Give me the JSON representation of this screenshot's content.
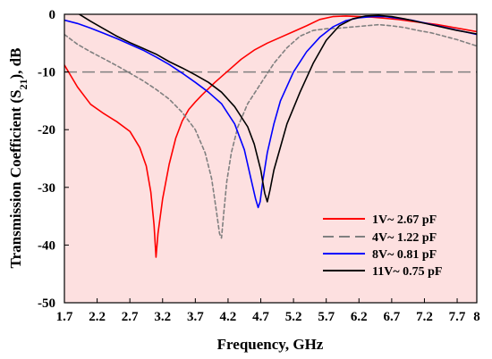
{
  "chart_data": {
    "type": "line",
    "xlabel": "Frequency, GHz",
    "ylabel_main": "Transmission Coefficient (S",
    "ylabel_sub": "21",
    "ylabel_tail": "), dB",
    "xlim": [
      1.7,
      8
    ],
    "ylim": [
      -50,
      0
    ],
    "xticks": [
      1.7,
      2.2,
      2.7,
      3.2,
      3.7,
      4.2,
      4.7,
      5.2,
      5.7,
      6.2,
      6.7,
      7.2,
      7.7,
      8
    ],
    "xtick_labels": [
      "1.7",
      "2.2",
      "2.7",
      "3.2",
      "3.7",
      "4.2",
      "4.7",
      "5.2",
      "5.7",
      "6.2",
      "6.7",
      "7.2",
      "7.7",
      "8"
    ],
    "yticks": [
      0,
      -10,
      -20,
      -30,
      -40,
      -50
    ],
    "ytick_labels": [
      "0",
      "-10",
      "-20",
      "-30",
      "-40",
      "-50"
    ],
    "plot_background": "#fde0e0",
    "grid": false,
    "reference_line": {
      "y": -10,
      "color": "#808080",
      "style": "dashed"
    },
    "legend_position": "bottom-right",
    "series": [
      {
        "name": "1V~ 2.67 pF",
        "color": "#ff0000",
        "style": "solid",
        "x": [
          1.7,
          1.9,
          2.1,
          2.3,
          2.5,
          2.7,
          2.85,
          2.95,
          3.02,
          3.07,
          3.1,
          3.13,
          3.2,
          3.3,
          3.4,
          3.5,
          3.6,
          3.7,
          3.8,
          4.0,
          4.2,
          4.4,
          4.6,
          4.8,
          5.0,
          5.2,
          5.4,
          5.6,
          5.8,
          6.0,
          6.2,
          6.4,
          6.6,
          6.8,
          7.0,
          7.2,
          7.4,
          7.6,
          7.8,
          8.0
        ],
        "y": [
          -8.8,
          -12.6,
          -15.6,
          -17.2,
          -18.6,
          -20.3,
          -23.1,
          -26.3,
          -30.8,
          -36.5,
          -42.1,
          -38.0,
          -32.0,
          -26.0,
          -21.5,
          -18.5,
          -16.5,
          -15.2,
          -14.0,
          -11.8,
          -9.8,
          -7.8,
          -6.2,
          -5.0,
          -4.0,
          -3.0,
          -2.0,
          -0.9,
          -0.4,
          -0.3,
          -0.4,
          -0.5,
          -0.7,
          -0.9,
          -1.2,
          -1.5,
          -1.8,
          -2.2,
          -2.6,
          -3.0
        ]
      },
      {
        "name": "4V~ 1.22 pF",
        "color": "#808080",
        "style": "dashed",
        "x": [
          1.7,
          1.9,
          2.1,
          2.3,
          2.5,
          2.7,
          2.9,
          3.1,
          3.3,
          3.5,
          3.7,
          3.85,
          3.95,
          4.02,
          4.07,
          4.1,
          4.13,
          4.18,
          4.25,
          4.35,
          4.5,
          4.7,
          4.9,
          5.1,
          5.3,
          5.5,
          5.7,
          5.9,
          6.1,
          6.3,
          6.5,
          6.7,
          6.9,
          7.1,
          7.3,
          7.5,
          7.7,
          8.0
        ],
        "y": [
          -3.5,
          -5.2,
          -6.5,
          -7.7,
          -8.9,
          -10.2,
          -11.5,
          -13.0,
          -14.7,
          -17.0,
          -20.0,
          -24.0,
          -28.5,
          -34.0,
          -38.0,
          -38.8,
          -35.0,
          -29.0,
          -24.0,
          -19.5,
          -15.5,
          -12.0,
          -8.5,
          -5.8,
          -3.8,
          -2.8,
          -2.5,
          -2.4,
          -2.2,
          -2.0,
          -1.8,
          -2.0,
          -2.3,
          -2.8,
          -3.2,
          -3.8,
          -4.4,
          -5.5
        ]
      },
      {
        "name": "8V~ 0.81 pF",
        "color": "#0000ff",
        "style": "solid",
        "x": [
          1.7,
          1.9,
          2.1,
          2.3,
          2.5,
          2.7,
          2.9,
          3.1,
          3.3,
          3.5,
          3.7,
          3.9,
          4.1,
          4.3,
          4.45,
          4.55,
          4.62,
          4.66,
          4.69,
          4.73,
          4.8,
          4.9,
          5.0,
          5.2,
          5.4,
          5.6,
          5.8,
          6.0,
          6.2,
          6.4,
          6.6,
          6.8,
          7.0,
          7.2,
          7.4,
          7.6,
          7.8,
          8.0
        ],
        "y": [
          -1.0,
          -1.6,
          -2.4,
          -3.3,
          -4.2,
          -5.2,
          -6.2,
          -7.4,
          -8.7,
          -10.2,
          -11.8,
          -13.5,
          -15.5,
          -19.0,
          -23.5,
          -28.5,
          -32.0,
          -33.5,
          -32.5,
          -29.0,
          -24.0,
          -19.0,
          -15.0,
          -10.0,
          -6.5,
          -4.0,
          -2.2,
          -1.1,
          -0.6,
          -0.4,
          -0.4,
          -0.7,
          -1.0,
          -1.5,
          -2.0,
          -2.5,
          -3.0,
          -3.5
        ]
      },
      {
        "name": "11V~ 0.75 pF",
        "color": "#000000",
        "style": "solid",
        "x": [
          1.7,
          1.9,
          2.1,
          2.3,
          2.5,
          2.7,
          2.9,
          3.1,
          3.3,
          3.5,
          3.7,
          3.9,
          4.1,
          4.3,
          4.5,
          4.6,
          4.7,
          4.76,
          4.8,
          4.84,
          4.9,
          5.0,
          5.1,
          5.3,
          5.5,
          5.7,
          5.9,
          6.1,
          6.3,
          6.5,
          6.7,
          6.9,
          7.1,
          7.3,
          7.5,
          7.7,
          8.0
        ],
        "y": [
          1.5,
          0.2,
          -1.2,
          -2.5,
          -3.8,
          -4.9,
          -5.9,
          -6.9,
          -8.2,
          -9.3,
          -10.5,
          -11.8,
          -13.5,
          -16.0,
          -19.5,
          -22.5,
          -27.0,
          -31.0,
          -32.5,
          -30.5,
          -27.0,
          -23.0,
          -19.0,
          -13.5,
          -8.5,
          -4.5,
          -2.0,
          -0.8,
          -0.3,
          -0.2,
          -0.4,
          -0.8,
          -1.3,
          -1.8,
          -2.3,
          -2.8,
          -3.4
        ]
      }
    ]
  }
}
